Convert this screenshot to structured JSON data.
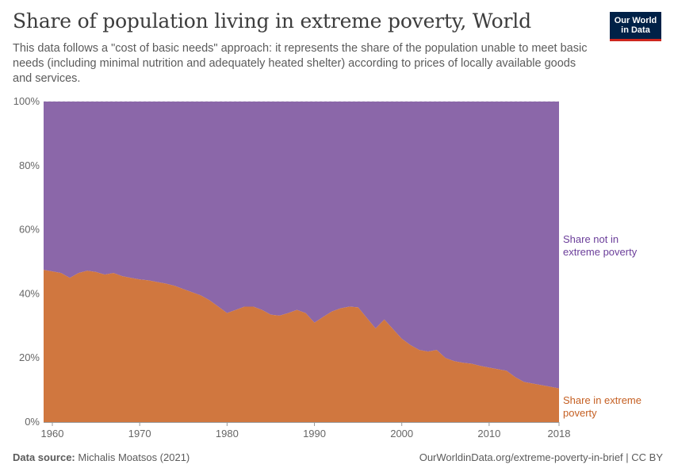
{
  "header": {
    "title": "Share of population living in extreme poverty, World",
    "subtitle": "This data follows a \"cost of basic needs\" approach: it represents the share of the population unable to meet basic needs (including minimal nutrition and adequately heated shelter) according to prices of locally available goods and services.",
    "logo_line1": "Our World",
    "logo_line2": "in Data"
  },
  "footer": {
    "source_label": "Data source:",
    "source_value": "Michalis Moatsos (2021)",
    "link": "OurWorldinData.org/extreme-poverty-in-brief | CC BY"
  },
  "colors": {
    "poverty": "#d0773f",
    "not_poverty": "#8b67a9",
    "poverty_label": "#c55f22",
    "not_poverty_label": "#6b3e9a"
  },
  "chart_data": {
    "type": "area",
    "stacked": true,
    "xlim": [
      1959,
      2018
    ],
    "ylim": [
      0,
      100
    ],
    "y_ticks": [
      "0%",
      "20%",
      "40%",
      "60%",
      "80%",
      "100%"
    ],
    "y_tick_values": [
      0,
      20,
      40,
      60,
      80,
      100
    ],
    "x_ticks": [
      "1960",
      "1970",
      "1980",
      "1990",
      "2000",
      "2010",
      "2018"
    ],
    "x_tick_values": [
      1960,
      1970,
      1980,
      1990,
      2000,
      2010,
      2018
    ],
    "grid": true,
    "x": [
      1959,
      1960,
      1961,
      1962,
      1963,
      1964,
      1965,
      1966,
      1967,
      1968,
      1969,
      1970,
      1971,
      1972,
      1973,
      1974,
      1975,
      1976,
      1977,
      1978,
      1979,
      1980,
      1981,
      1982,
      1983,
      1984,
      1985,
      1986,
      1987,
      1988,
      1989,
      1990,
      1991,
      1992,
      1993,
      1994,
      1995,
      1996,
      1997,
      1998,
      1999,
      2000,
      2001,
      2002,
      2003,
      2004,
      2005,
      2006,
      2007,
      2008,
      2009,
      2010,
      2011,
      2012,
      2013,
      2014,
      2015,
      2016,
      2017,
      2018
    ],
    "series": [
      {
        "name": "Share in extreme poverty",
        "values": [
          47.5,
          47,
          46.5,
          45,
          46.5,
          47.2,
          46.8,
          46,
          46.5,
          45.5,
          45,
          44.5,
          44.2,
          43.7,
          43.2,
          42.5,
          41.5,
          40.5,
          39.5,
          38,
          36,
          34,
          35,
          36,
          36,
          35,
          33.5,
          33.2,
          34,
          35,
          34,
          31,
          32.8,
          34.5,
          35.5,
          36,
          35.8,
          32.5,
          29.2,
          32,
          29,
          26,
          24,
          22.5,
          22,
          22.5,
          20,
          19,
          18.5,
          18.2,
          17.5,
          17,
          16.5,
          16,
          14,
          12.5,
          12,
          11.5,
          11,
          10.5
        ]
      },
      {
        "name": "Share not in extreme poverty",
        "values": [
          52.5,
          53,
          53.5,
          55,
          53.5,
          52.8,
          53.2,
          54,
          53.5,
          54.5,
          55,
          55.5,
          55.8,
          56.3,
          56.8,
          57.5,
          58.5,
          59.5,
          60.5,
          62,
          64,
          66,
          65,
          64,
          64,
          65,
          66.5,
          66.8,
          66,
          65,
          66,
          69,
          67.2,
          65.5,
          64.5,
          64,
          64.2,
          67.5,
          70.8,
          68,
          71,
          74,
          76,
          77.5,
          78,
          77.5,
          80,
          81,
          81.5,
          81.8,
          82.5,
          83,
          83.5,
          84,
          86,
          87.5,
          88,
          88.5,
          89,
          89.5
        ]
      }
    ],
    "labels": {
      "not_poverty": [
        "Share not in",
        "extreme poverty"
      ],
      "poverty": [
        "Share in extreme",
        "poverty"
      ]
    }
  }
}
